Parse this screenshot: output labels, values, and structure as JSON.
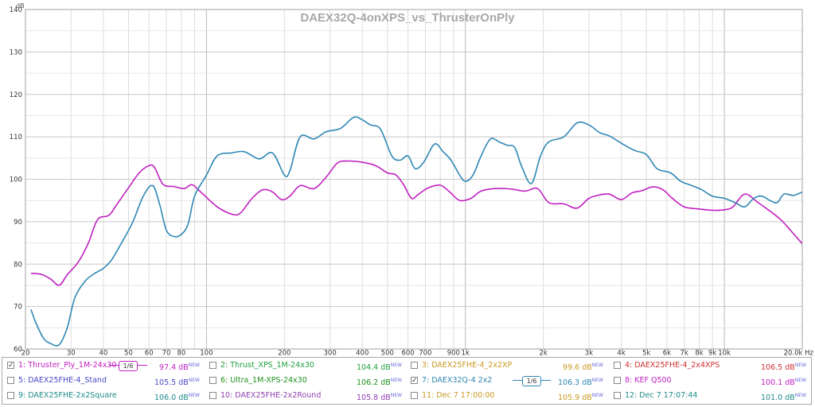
{
  "chart_data": {
    "type": "line",
    "title": "DAEX32Q-4onXPS_vs_ThrusterOnPly",
    "ylabel": "dB",
    "xlabel": "Hz",
    "x_scale": "log",
    "xlim": [
      20,
      20000
    ],
    "ylim": [
      60,
      140
    ],
    "y_ticks": [
      60,
      70,
      80,
      90,
      100,
      110,
      120,
      130,
      140
    ],
    "x_ticks": [
      {
        "v": 20,
        "l": "20"
      },
      {
        "v": 30,
        "l": "30"
      },
      {
        "v": 40,
        "l": "40"
      },
      {
        "v": 50,
        "l": "50"
      },
      {
        "v": 60,
        "l": "60"
      },
      {
        "v": 70,
        "l": "70"
      },
      {
        "v": 80,
        "l": "80"
      },
      {
        "v": 100,
        "l": "100"
      },
      {
        "v": 200,
        "l": "200"
      },
      {
        "v": 300,
        "l": "300"
      },
      {
        "v": 400,
        "l": "400"
      },
      {
        "v": 500,
        "l": "500"
      },
      {
        "v": 600,
        "l": "600"
      },
      {
        "v": 700,
        "l": "700"
      },
      {
        "v": 900,
        "l": "900"
      },
      {
        "v": 1000,
        "l": "1k"
      },
      {
        "v": 2000,
        "l": "2k"
      },
      {
        "v": 3000,
        "l": "3k"
      },
      {
        "v": 4000,
        "l": "4k"
      },
      {
        "v": 5000,
        "l": "5k"
      },
      {
        "v": 6000,
        "l": "6k"
      },
      {
        "v": 7000,
        "l": "7k"
      },
      {
        "v": 8000,
        "l": "8k"
      },
      {
        "v": 9000,
        "l": "9k"
      },
      {
        "v": 10000,
        "l": "10k"
      },
      {
        "v": 20000,
        "l": "20.0k Hz"
      }
    ],
    "grid": true,
    "series": [
      {
        "name": "1: Thruster_Ply_1M-24x30",
        "color": "#c020c0",
        "points": [
          [
            21,
            77.8
          ],
          [
            23,
            77.6
          ],
          [
            25,
            76.5
          ],
          [
            27,
            75
          ],
          [
            29,
            77.5
          ],
          [
            32,
            80.5
          ],
          [
            35,
            85
          ],
          [
            38,
            90.5
          ],
          [
            42,
            91.5
          ],
          [
            45,
            94
          ],
          [
            50,
            98
          ],
          [
            55,
            101.5
          ],
          [
            60,
            103.2
          ],
          [
            63,
            102.8
          ],
          [
            68,
            98.8
          ],
          [
            75,
            98.3
          ],
          [
            82,
            97.8
          ],
          [
            88,
            98.7
          ],
          [
            95,
            97
          ],
          [
            110,
            93.5
          ],
          [
            125,
            91.8
          ],
          [
            135,
            92
          ],
          [
            150,
            95.5
          ],
          [
            165,
            97.5
          ],
          [
            180,
            97
          ],
          [
            195,
            95.2
          ],
          [
            210,
            96
          ],
          [
            230,
            98.5
          ],
          [
            260,
            97.8
          ],
          [
            290,
            100.5
          ],
          [
            320,
            103.8
          ],
          [
            350,
            104.3
          ],
          [
            400,
            104
          ],
          [
            450,
            103.2
          ],
          [
            500,
            101.5
          ],
          [
            540,
            101
          ],
          [
            580,
            98.5
          ],
          [
            620,
            95.5
          ],
          [
            660,
            96.5
          ],
          [
            720,
            98
          ],
          [
            800,
            98.6
          ],
          [
            870,
            97
          ],
          [
            950,
            95
          ],
          [
            1050,
            95.5
          ],
          [
            1150,
            97.2
          ],
          [
            1300,
            97.8
          ],
          [
            1500,
            97.7
          ],
          [
            1700,
            97.2
          ],
          [
            1900,
            97.8
          ],
          [
            2100,
            94.5
          ],
          [
            2400,
            94.2
          ],
          [
            2700,
            93.2
          ],
          [
            3000,
            95.5
          ],
          [
            3300,
            96.3
          ],
          [
            3600,
            96.5
          ],
          [
            4000,
            95.2
          ],
          [
            4400,
            96.8
          ],
          [
            4800,
            97.3
          ],
          [
            5300,
            98.2
          ],
          [
            5800,
            97.5
          ],
          [
            6300,
            95.5
          ],
          [
            7000,
            93.5
          ],
          [
            8000,
            93
          ],
          [
            9000,
            92.7
          ],
          [
            10000,
            92.8
          ],
          [
            10800,
            93.5
          ],
          [
            12000,
            96.5
          ],
          [
            13500,
            94.5
          ],
          [
            15000,
            92.5
          ],
          [
            16500,
            90.5
          ],
          [
            18000,
            88
          ],
          [
            20000,
            84.8
          ]
        ]
      },
      {
        "name": "7: DAEX32Q-4 2x2",
        "color": "#2f88b4",
        "points": [
          [
            21,
            69.3
          ],
          [
            22,
            66
          ],
          [
            23.5,
            62.5
          ],
          [
            25,
            61.3
          ],
          [
            27,
            61
          ],
          [
            29,
            65
          ],
          [
            31,
            72
          ],
          [
            34,
            76
          ],
          [
            37,
            77.8
          ],
          [
            40,
            79
          ],
          [
            43,
            81
          ],
          [
            47,
            85
          ],
          [
            52,
            90
          ],
          [
            57,
            96
          ],
          [
            62,
            98.5
          ],
          [
            66,
            94
          ],
          [
            70,
            88
          ],
          [
            75,
            86.5
          ],
          [
            80,
            87
          ],
          [
            85,
            89.5
          ],
          [
            90,
            96
          ],
          [
            100,
            101
          ],
          [
            110,
            105.5
          ],
          [
            125,
            106.2
          ],
          [
            140,
            106.5
          ],
          [
            160,
            104.8
          ],
          [
            180,
            106.2
          ],
          [
            200,
            101
          ],
          [
            210,
            102
          ],
          [
            230,
            110
          ],
          [
            260,
            109.5
          ],
          [
            290,
            111.2
          ],
          [
            330,
            112
          ],
          [
            370,
            114.6
          ],
          [
            400,
            114
          ],
          [
            430,
            112.8
          ],
          [
            470,
            111.8
          ],
          [
            520,
            105.5
          ],
          [
            560,
            104.5
          ],
          [
            600,
            105.5
          ],
          [
            640,
            102.5
          ],
          [
            690,
            104
          ],
          [
            760,
            108.3
          ],
          [
            820,
            106.5
          ],
          [
            880,
            104.5
          ],
          [
            950,
            101
          ],
          [
            1000,
            99.5
          ],
          [
            1070,
            101
          ],
          [
            1150,
            105.5
          ],
          [
            1250,
            109.5
          ],
          [
            1350,
            108.8
          ],
          [
            1450,
            108
          ],
          [
            1550,
            107.5
          ],
          [
            1650,
            103
          ],
          [
            1800,
            99
          ],
          [
            1950,
            105.5
          ],
          [
            2100,
            108.8
          ],
          [
            2400,
            110
          ],
          [
            2700,
            113.3
          ],
          [
            3000,
            112.8
          ],
          [
            3300,
            111
          ],
          [
            3600,
            110.2
          ],
          [
            4000,
            108.5
          ],
          [
            4500,
            106.8
          ],
          [
            5000,
            105.8
          ],
          [
            5500,
            102.5
          ],
          [
            6200,
            101.5
          ],
          [
            6800,
            99.5
          ],
          [
            7500,
            98.5
          ],
          [
            8200,
            97.5
          ],
          [
            9000,
            96
          ],
          [
            10000,
            95.5
          ],
          [
            11000,
            94.5
          ],
          [
            12000,
            93.5
          ],
          [
            13000,
            95.5
          ],
          [
            14000,
            96
          ],
          [
            15000,
            95
          ],
          [
            16000,
            94.5
          ],
          [
            17000,
            96.5
          ],
          [
            18500,
            96.2
          ],
          [
            20000,
            97
          ]
        ]
      }
    ]
  },
  "legend": [
    {
      "name": "1: Thruster_Ply_1M-24x30",
      "value": "97.4 dB",
      "new": "NEW",
      "color": "#c020c0",
      "checked": true,
      "smoothing": "1/6"
    },
    {
      "name": "2: Thrust_XPS_1M-24x30",
      "value": "104.4 dB",
      "new": "NEW",
      "color": "#20a040",
      "checked": false
    },
    {
      "name": "3: DAEX25FHE-4_2x2XP",
      "value": "99.6 dB",
      "new": "NEW",
      "color": "#c89a20",
      "checked": false
    },
    {
      "name": "4: DAEX25FHE-4_2x4XPS",
      "value": "106.5 dB",
      "new": "NEW",
      "color": "#d03030",
      "checked": false
    },
    {
      "name": "5: DAEX25FHE-4_Stand",
      "value": "105.5 dB",
      "new": "NEW",
      "color": "#4848c8",
      "checked": false
    },
    {
      "name": "6: Ultra_1M-XPS-24x30",
      "value": "106.2 dB",
      "new": "NEW",
      "color": "#209020",
      "checked": false
    },
    {
      "name": "7: DAEX32Q-4 2x2",
      "value": "106.3 dB",
      "new": "NEW",
      "color": "#2f88b4",
      "checked": true,
      "smoothing": "1/6"
    },
    {
      "name": "8: KEF Q500",
      "value": "100.1 dB",
      "new": "NEW",
      "color": "#c020c0",
      "checked": false
    },
    {
      "name": "9: DAEX25FHE-2x2Square",
      "value": "106.0 dB",
      "new": "NEW",
      "color": "#208a8a",
      "checked": false
    },
    {
      "name": "10: DAEX25FHE-2x2Round",
      "value": "105.8 dB",
      "new": "NEW",
      "color": "#9040b0",
      "checked": false
    },
    {
      "name": "11: Dec 7 17:00:00",
      "value": "105.9 dB",
      "new": "NEW",
      "color": "#c89a20",
      "checked": false
    },
    {
      "name": "12: Dec 7 17:07:44",
      "value": "101.0 dB",
      "new": "NEW",
      "color": "#208a8a",
      "checked": false
    }
  ]
}
